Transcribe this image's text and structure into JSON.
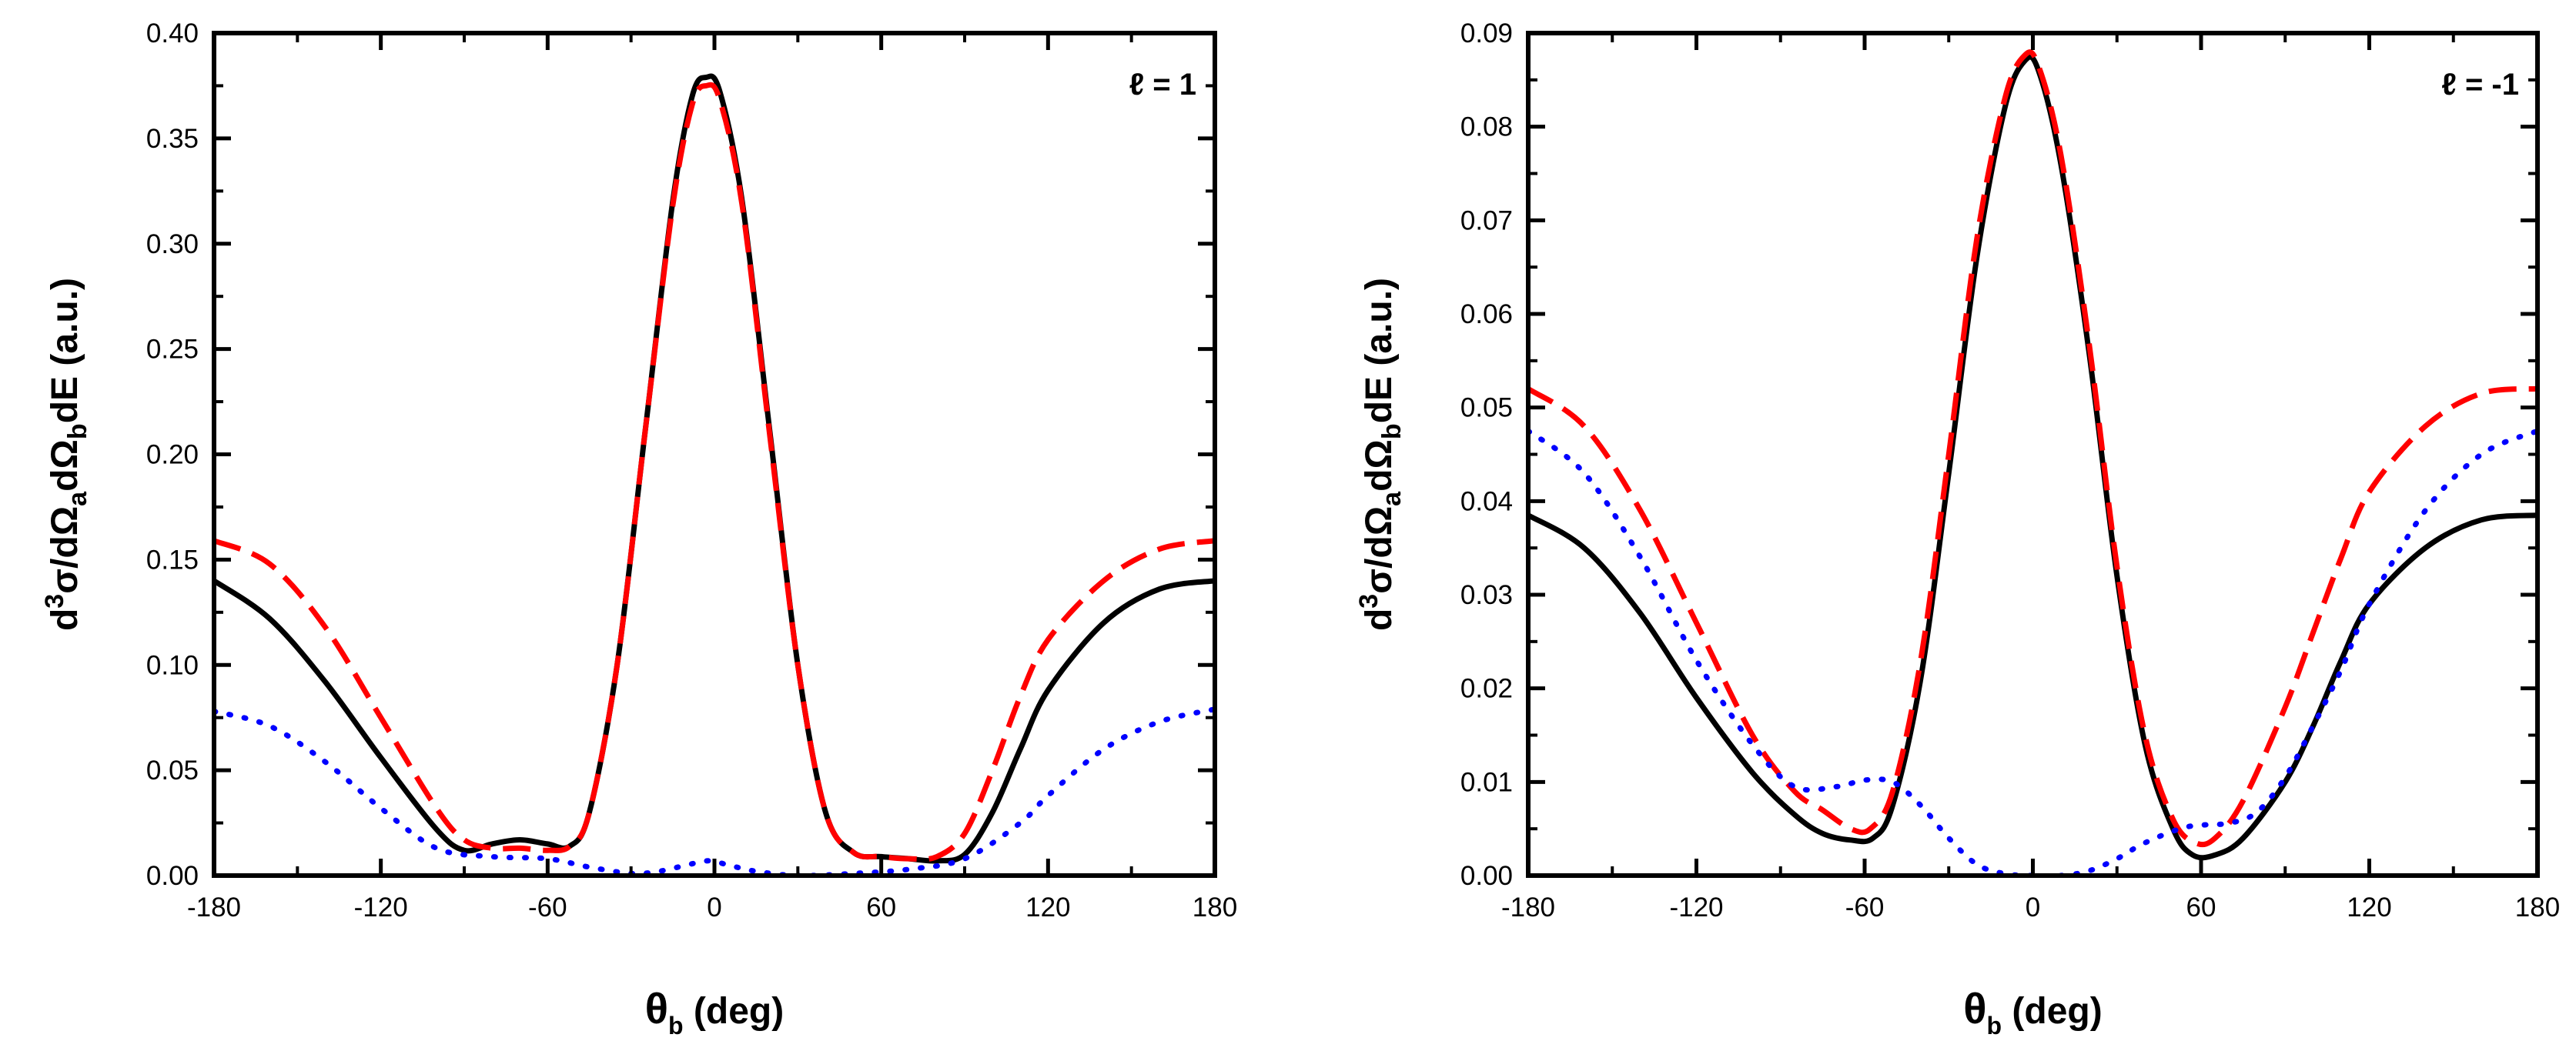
{
  "chart_data": [
    {
      "type": "line",
      "panel_label": "ℓ = 1",
      "xlabel": {
        "symbol": "θ",
        "sub": "b",
        "unit": " (deg)"
      },
      "ylabel": {
        "parts": [
          {
            "t": "d",
            "s": ""
          },
          {
            "t": "3",
            "s": "sup"
          },
          {
            "t": "σ/dΩ",
            "s": ""
          },
          {
            "t": "a",
            "s": "sub"
          },
          {
            "t": "dΩ",
            "s": ""
          },
          {
            "t": "b",
            "s": "sub"
          },
          {
            "t": "dE (a.u.)",
            "s": ""
          }
        ]
      },
      "xlim": [
        -180,
        180
      ],
      "ylim": [
        0,
        0.4
      ],
      "xticks": [
        -180,
        -120,
        -60,
        0,
        60,
        120,
        180
      ],
      "xtick_labels": [
        "-180",
        "-120",
        "-60",
        "0",
        "60",
        "120",
        "180"
      ],
      "yticks": [
        0,
        0.05,
        0.1,
        0.15,
        0.2,
        0.25,
        0.3,
        0.35,
        0.4
      ],
      "ytick_labels": [
        "0.00",
        "0.05",
        "0.10",
        "0.15",
        "0.20",
        "0.25",
        "0.30",
        "0.35",
        "0.40"
      ],
      "series": [
        {
          "name": "solid",
          "color": "#000000",
          "dash": "solid",
          "points": [
            [
              -180,
              0.14
            ],
            [
              -160,
              0.122
            ],
            [
              -140,
              0.092
            ],
            [
              -120,
              0.056
            ],
            [
              -100,
              0.022
            ],
            [
              -90,
              0.012
            ],
            [
              -80,
              0.015
            ],
            [
              -70,
              0.017
            ],
            [
              -60,
              0.015
            ],
            [
              -52,
              0.014
            ],
            [
              -45,
              0.03
            ],
            [
              -35,
              0.1
            ],
            [
              -25,
              0.21
            ],
            [
              -15,
              0.32
            ],
            [
              -8,
              0.37
            ],
            [
              -3,
              0.379
            ],
            [
              2,
              0.372
            ],
            [
              10,
              0.32
            ],
            [
              20,
              0.21
            ],
            [
              30,
              0.1
            ],
            [
              40,
              0.03
            ],
            [
              50,
              0.011
            ],
            [
              60,
              0.009
            ],
            [
              70,
              0.008
            ],
            [
              80,
              0.007
            ],
            [
              90,
              0.01
            ],
            [
              100,
              0.03
            ],
            [
              110,
              0.06
            ],
            [
              120,
              0.088
            ],
            [
              140,
              0.12
            ],
            [
              160,
              0.136
            ],
            [
              180,
              0.14
            ]
          ]
        },
        {
          "name": "dashed",
          "color": "#ff0000",
          "dash": "dashed",
          "points": [
            [
              -180,
              0.159
            ],
            [
              -160,
              0.148
            ],
            [
              -140,
              0.118
            ],
            [
              -120,
              0.075
            ],
            [
              -100,
              0.032
            ],
            [
              -90,
              0.017
            ],
            [
              -80,
              0.013
            ],
            [
              -70,
              0.013
            ],
            [
              -60,
              0.012
            ],
            [
              -52,
              0.014
            ],
            [
              -45,
              0.03
            ],
            [
              -35,
              0.1
            ],
            [
              -25,
              0.21
            ],
            [
              -15,
              0.318
            ],
            [
              -8,
              0.366
            ],
            [
              -3,
              0.375
            ],
            [
              2,
              0.368
            ],
            [
              10,
              0.318
            ],
            [
              20,
              0.208
            ],
            [
              30,
              0.1
            ],
            [
              40,
              0.03
            ],
            [
              50,
              0.011
            ],
            [
              60,
              0.009
            ],
            [
              70,
              0.008
            ],
            [
              80,
              0.009
            ],
            [
              90,
              0.02
            ],
            [
              100,
              0.05
            ],
            [
              110,
              0.085
            ],
            [
              120,
              0.112
            ],
            [
              140,
              0.14
            ],
            [
              160,
              0.155
            ],
            [
              180,
              0.159
            ]
          ]
        },
        {
          "name": "dotted",
          "color": "#0000ff",
          "dash": "dotted",
          "points": [
            [
              -180,
              0.078
            ],
            [
              -160,
              0.071
            ],
            [
              -140,
              0.054
            ],
            [
              -120,
              0.032
            ],
            [
              -100,
              0.013
            ],
            [
              -80,
              0.009
            ],
            [
              -60,
              0.008
            ],
            [
              -45,
              0.004
            ],
            [
              -30,
              0.001
            ],
            [
              -20,
              0.002
            ],
            [
              -10,
              0.005
            ],
            [
              -2,
              0.007
            ],
            [
              5,
              0.005
            ],
            [
              15,
              0.002
            ],
            [
              30,
              0.0
            ],
            [
              50,
              0.001
            ],
            [
              70,
              0.003
            ],
            [
              90,
              0.008
            ],
            [
              110,
              0.025
            ],
            [
              120,
              0.038
            ],
            [
              140,
              0.06
            ],
            [
              160,
              0.073
            ],
            [
              180,
              0.079
            ]
          ]
        }
      ]
    },
    {
      "type": "line",
      "panel_label": "ℓ = -1",
      "xlabel": {
        "symbol": "θ",
        "sub": "b",
        "unit": " (deg)"
      },
      "ylabel": {
        "parts": [
          {
            "t": "d",
            "s": ""
          },
          {
            "t": "3",
            "s": "sup"
          },
          {
            "t": "σ/dΩ",
            "s": ""
          },
          {
            "t": "a",
            "s": "sub"
          },
          {
            "t": "dΩ",
            "s": ""
          },
          {
            "t": "b",
            "s": "sub"
          },
          {
            "t": "dE (a.u.)",
            "s": ""
          }
        ]
      },
      "xlim": [
        -180,
        180
      ],
      "ylim": [
        0,
        0.09
      ],
      "xticks": [
        -180,
        -120,
        -60,
        0,
        60,
        120,
        180
      ],
      "xtick_labels": [
        "-180",
        "-120",
        "-60",
        "0",
        "60",
        "120",
        "180"
      ],
      "yticks": [
        0,
        0.01,
        0.02,
        0.03,
        0.04,
        0.05,
        0.06,
        0.07,
        0.08,
        0.09
      ],
      "ytick_labels": [
        "0.00",
        "0.01",
        "0.02",
        "0.03",
        "0.04",
        "0.05",
        "0.06",
        "0.07",
        "0.08",
        "0.09"
      ],
      "series": [
        {
          "name": "solid",
          "color": "#000000",
          "dash": "solid",
          "points": [
            [
              -180,
              0.0385
            ],
            [
              -160,
              0.035
            ],
            [
              -140,
              0.028
            ],
            [
              -120,
              0.019
            ],
            [
              -100,
              0.011
            ],
            [
              -85,
              0.0065
            ],
            [
              -75,
              0.0045
            ],
            [
              -65,
              0.0038
            ],
            [
              -57,
              0.004
            ],
            [
              -50,
              0.0075
            ],
            [
              -40,
              0.021
            ],
            [
              -30,
              0.043
            ],
            [
              -20,
              0.066
            ],
            [
              -10,
              0.082
            ],
            [
              -3,
              0.087
            ],
            [
              2,
              0.086
            ],
            [
              10,
              0.076
            ],
            [
              20,
              0.056
            ],
            [
              30,
              0.032
            ],
            [
              40,
              0.014
            ],
            [
              50,
              0.005
            ],
            [
              57,
              0.0022
            ],
            [
              65,
              0.0022
            ],
            [
              75,
              0.004
            ],
            [
              90,
              0.01
            ],
            [
              100,
              0.016
            ],
            [
              110,
              0.023
            ],
            [
              120,
              0.029
            ],
            [
              140,
              0.035
            ],
            [
              160,
              0.038
            ],
            [
              180,
              0.0385
            ]
          ]
        },
        {
          "name": "dashed",
          "color": "#ff0000",
          "dash": "dashed",
          "points": [
            [
              -180,
              0.052
            ],
            [
              -160,
              0.048
            ],
            [
              -140,
              0.039
            ],
            [
              -120,
              0.027
            ],
            [
              -100,
              0.015
            ],
            [
              -85,
              0.009
            ],
            [
              -75,
              0.007
            ],
            [
              -65,
              0.005
            ],
            [
              -58,
              0.005
            ],
            [
              -50,
              0.009
            ],
            [
              -40,
              0.023
            ],
            [
              -30,
              0.045
            ],
            [
              -20,
              0.068
            ],
            [
              -10,
              0.083
            ],
            [
              -3,
              0.0876
            ],
            [
              2,
              0.0865
            ],
            [
              10,
              0.077
            ],
            [
              20,
              0.057
            ],
            [
              30,
              0.033
            ],
            [
              40,
              0.015
            ],
            [
              50,
              0.006
            ],
            [
              58,
              0.0035
            ],
            [
              65,
              0.004
            ],
            [
              75,
              0.008
            ],
            [
              90,
              0.018
            ],
            [
              100,
              0.026
            ],
            [
              110,
              0.034
            ],
            [
              120,
              0.041
            ],
            [
              140,
              0.048
            ],
            [
              160,
              0.0515
            ],
            [
              180,
              0.052
            ]
          ]
        },
        {
          "name": "dotted",
          "color": "#0000ff",
          "dash": "dotted",
          "points": [
            [
              -180,
              0.0475
            ],
            [
              -160,
              0.043
            ],
            [
              -140,
              0.034
            ],
            [
              -120,
              0.023
            ],
            [
              -100,
              0.014
            ],
            [
              -85,
              0.0095
            ],
            [
              -70,
              0.0095
            ],
            [
              -60,
              0.0102
            ],
            [
              -50,
              0.01
            ],
            [
              -40,
              0.0075
            ],
            [
              -30,
              0.004
            ],
            [
              -20,
              0.0012
            ],
            [
              -10,
              0.0002
            ],
            [
              0,
              0.0
            ],
            [
              10,
              0.0
            ],
            [
              20,
              0.0005
            ],
            [
              30,
              0.0018
            ],
            [
              40,
              0.0035
            ],
            [
              55,
              0.0052
            ],
            [
              70,
              0.0056
            ],
            [
              80,
              0.0068
            ],
            [
              90,
              0.0105
            ],
            [
              100,
              0.016
            ],
            [
              110,
              0.022
            ],
            [
              120,
              0.029
            ],
            [
              140,
              0.039
            ],
            [
              160,
              0.045
            ],
            [
              180,
              0.0475
            ]
          ]
        }
      ]
    }
  ]
}
